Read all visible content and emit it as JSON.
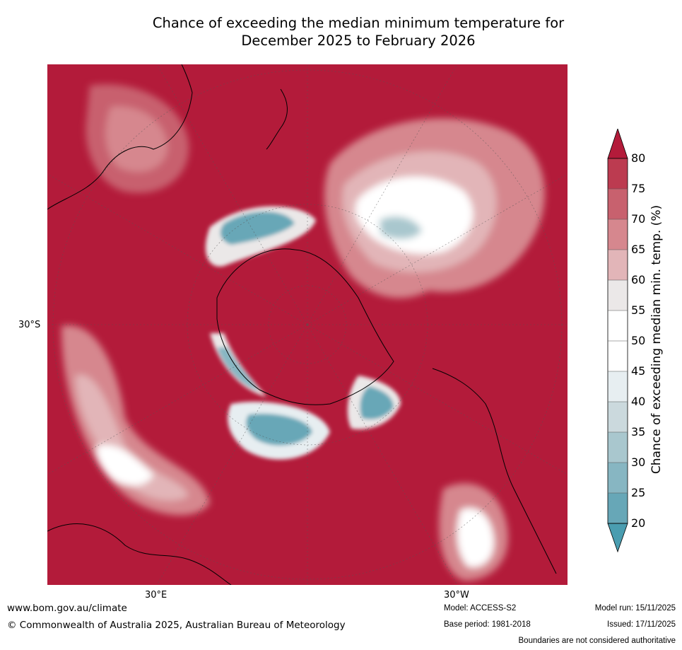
{
  "title": {
    "line1": "Chance of exceeding the median minimum temperature for",
    "line2": "December 2025 to February 2026"
  },
  "axis_labels": {
    "lat_left": "30°S",
    "lon_bottom_left": "30°E",
    "lon_bottom_right": "30°W"
  },
  "colorbar": {
    "title": "Chance of exceeding median min. temp. (%)",
    "ticks": [
      "80",
      "75",
      "70",
      "65",
      "60",
      "55",
      "50",
      "45",
      "40",
      "35",
      "30",
      "25",
      "20"
    ],
    "colors": {
      "above_80": "#b31b3a",
      "75_80": "#bc3b50",
      "70_75": "#c8616e",
      "65_70": "#d6878e",
      "60_65": "#e2b5b8",
      "55_60": "#ebe8e8",
      "50_55": "#ffffff",
      "45_50": "#ffffff",
      "40_45": "#e7eef1",
      "35_40": "#cbd9dd",
      "30_35": "#a9c7ce",
      "25_30": "#87b6c2",
      "20_25": "#67a7b7",
      "below_20": "#4a9db0"
    }
  },
  "footer": {
    "website": "www.bom.gov.au/climate",
    "copyright": "© Commonwealth of Australia 2025, Australian Bureau of Meteorology",
    "model": "Model: ACCESS-S2",
    "base_period": "Base period: 1981-2018",
    "model_run": "Model run: 15/11/2025",
    "issued": "Issued: 17/11/2025",
    "disclaimer": "Boundaries are not considered authoritative"
  }
}
